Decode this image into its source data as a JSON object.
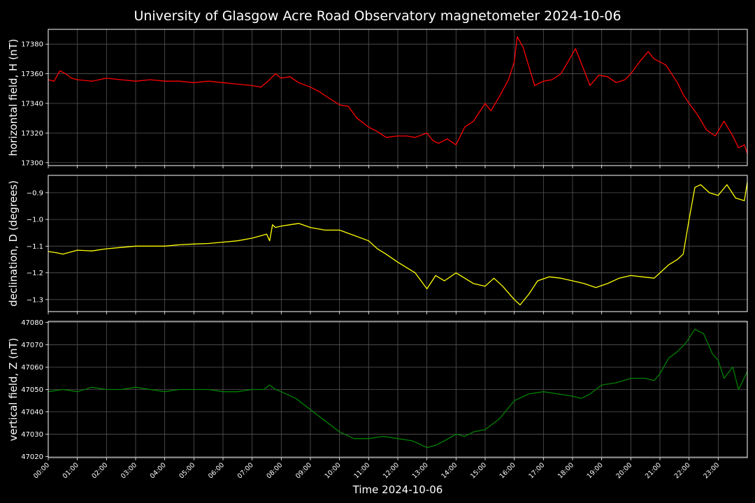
{
  "chart_data": [
    {
      "type": "line",
      "title": "University of Glasgow Acre Road Observatory magnetometer 2024-10-06",
      "ylabel": "horizontal field, H (nT)",
      "ylim": [
        17298,
        17390
      ],
      "yticks": [
        17300,
        17320,
        17340,
        17360,
        17380
      ],
      "xlim": [
        0,
        24
      ],
      "grid": true,
      "color": "#ff0000",
      "series": [
        {
          "x": [
            0,
            0.2,
            0.4,
            0.6,
            0.8,
            1,
            1.5,
            2,
            2.5,
            3,
            3.5,
            4,
            4.5,
            5,
            5.5,
            6,
            6.5,
            7,
            7.3,
            7.6,
            7.8,
            8,
            8.3,
            8.6,
            9,
            9.3,
            9.6,
            10,
            10.3,
            10.6,
            11,
            11.3,
            11.6,
            12,
            12.3,
            12.6,
            13,
            13.2,
            13.4,
            13.7,
            14,
            14.3,
            14.6,
            15,
            15.2,
            15.5,
            15.8,
            16,
            16.1,
            16.3,
            16.5,
            16.7,
            17,
            17.3,
            17.6,
            17.9,
            18.1,
            18.4,
            18.6,
            18.9,
            19.2,
            19.5,
            19.8,
            20,
            20.3,
            20.6,
            20.8,
            21,
            21.2,
            21.4,
            21.6,
            21.8,
            22,
            22.3,
            22.6,
            22.9,
            23.2,
            23.5,
            23.7,
            23.9,
            24
          ],
          "y": [
            17356,
            17355,
            17362,
            17360,
            17357,
            17356,
            17355,
            17357,
            17356,
            17355,
            17356,
            17355,
            17355,
            17354,
            17355,
            17354,
            17353,
            17352,
            17351,
            17356,
            17360,
            17357,
            17358,
            17354,
            17351,
            17348,
            17344,
            17339,
            17338,
            17330,
            17324,
            17321,
            17317,
            17318,
            17318,
            17317,
            17320,
            17315,
            17313,
            17316,
            17312,
            17324,
            17328,
            17340,
            17335,
            17345,
            17356,
            17368,
            17385,
            17378,
            17365,
            17352,
            17355,
            17356,
            17360,
            17370,
            17377,
            17362,
            17352,
            17359,
            17358,
            17354,
            17356,
            17360,
            17368,
            17375,
            17370,
            17368,
            17366,
            17360,
            17354,
            17346,
            17340,
            17332,
            17322,
            17318,
            17328,
            17318,
            17310,
            17312,
            17306
          ]
        }
      ]
    },
    {
      "type": "line",
      "ylabel": "declination, D (degrees)",
      "ylim": [
        -1.345,
        -0.835
      ],
      "yticks": [
        -1.3,
        -1.2,
        -1.1,
        -1.0,
        -0.9
      ],
      "ytick_labels": [
        "−1.3",
        "−1.2",
        "−1.1",
        "−1.0",
        "−0.9"
      ],
      "xlim": [
        0,
        24
      ],
      "grid": true,
      "color": "#ffff00",
      "series": [
        {
          "x": [
            0,
            0.3,
            0.5,
            1,
            1.5,
            2,
            2.5,
            3,
            3.5,
            4,
            4.5,
            5,
            5.5,
            6,
            6.5,
            7,
            7.5,
            7.6,
            7.7,
            7.8,
            8,
            8.3,
            8.6,
            9,
            9.5,
            10,
            10.5,
            11,
            11.3,
            11.6,
            12,
            12.3,
            12.6,
            13,
            13.3,
            13.6,
            14,
            14.3,
            14.6,
            15,
            15.3,
            15.6,
            16,
            16.2,
            16.5,
            16.8,
            17.2,
            17.6,
            18,
            18.4,
            18.8,
            19.2,
            19.6,
            20,
            20.4,
            20.8,
            21,
            21.3,
            21.6,
            21.8,
            22,
            22.2,
            22.4,
            22.7,
            23,
            23.3,
            23.6,
            23.9,
            24
          ],
          "y": [
            -1.12,
            -1.125,
            -1.13,
            -1.115,
            -1.118,
            -1.11,
            -1.105,
            -1.1,
            -1.1,
            -1.1,
            -1.095,
            -1.092,
            -1.09,
            -1.085,
            -1.08,
            -1.07,
            -1.055,
            -1.08,
            -1.02,
            -1.03,
            -1.025,
            -1.02,
            -1.015,
            -1.03,
            -1.04,
            -1.04,
            -1.06,
            -1.08,
            -1.11,
            -1.13,
            -1.16,
            -1.18,
            -1.2,
            -1.26,
            -1.21,
            -1.23,
            -1.2,
            -1.22,
            -1.24,
            -1.25,
            -1.22,
            -1.25,
            -1.3,
            -1.32,
            -1.28,
            -1.23,
            -1.215,
            -1.22,
            -1.23,
            -1.24,
            -1.255,
            -1.24,
            -1.22,
            -1.21,
            -1.215,
            -1.22,
            -1.2,
            -1.17,
            -1.15,
            -1.13,
            -1.0,
            -0.88,
            -0.87,
            -0.9,
            -0.91,
            -0.87,
            -0.92,
            -0.93,
            -0.86
          ]
        }
      ]
    },
    {
      "type": "line",
      "ylabel": "vertical field, Z (nT)",
      "ylim": [
        47019.5,
        47080.5
      ],
      "yticks": [
        47020,
        47030,
        47040,
        47050,
        47060,
        47070,
        47080
      ],
      "xlim": [
        0,
        24
      ],
      "grid": true,
      "color": "#008000",
      "xlabel": "Time 2024-10-06",
      "xtick_labels": [
        "00:00",
        "01:00",
        "02:00",
        "03:00",
        "04:00",
        "05:00",
        "06:00",
        "07:00",
        "08:00",
        "09:00",
        "10:00",
        "11:00",
        "12:00",
        "13:00",
        "14:00",
        "15:00",
        "16:00",
        "17:00",
        "18:00",
        "19:00",
        "20:00",
        "21:00",
        "22:00",
        "23:00"
      ],
      "series": [
        {
          "x": [
            0,
            0.5,
            1,
            1.5,
            2,
            2.5,
            3,
            3.5,
            4,
            4.5,
            5,
            5.5,
            6,
            6.5,
            7,
            7.4,
            7.6,
            7.8,
            8,
            8.5,
            9,
            9.5,
            10,
            10.5,
            11,
            11.5,
            12,
            12.5,
            13,
            13.3,
            13.6,
            14,
            14.3,
            14.6,
            15,
            15.5,
            16,
            16.5,
            17,
            17.5,
            18,
            18.3,
            18.6,
            19,
            19.5,
            20,
            20.5,
            20.8,
            21,
            21.3,
            21.6,
            21.9,
            22.2,
            22.5,
            22.8,
            23,
            23.2,
            23.5,
            23.7,
            24
          ],
          "y": [
            47049,
            47050,
            47049,
            47051,
            47050,
            47050,
            47051,
            47050,
            47049,
            47050,
            47050,
            47050,
            47049,
            47049,
            47050,
            47050,
            47052,
            47050,
            47049,
            47046,
            47041,
            47036,
            47031,
            47028,
            47028,
            47029,
            47028,
            47027,
            47024,
            47025,
            47027,
            47030,
            47029,
            47031,
            47032,
            47037,
            47045,
            47048,
            47049,
            47048,
            47047,
            47046,
            47048,
            47052,
            47053,
            47055,
            47055,
            47054,
            47057,
            47064,
            47067,
            47071,
            47077,
            47075,
            47066,
            47063,
            47055,
            47060,
            47050,
            47058
          ]
        }
      ]
    }
  ]
}
